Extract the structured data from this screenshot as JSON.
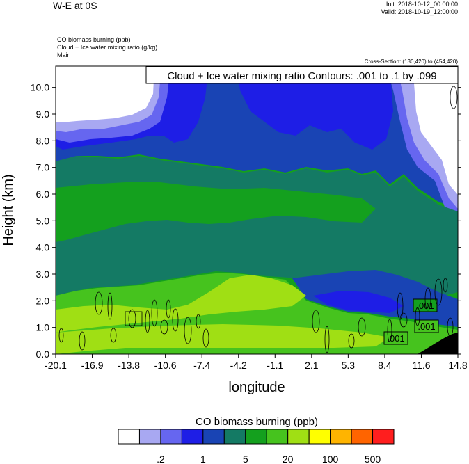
{
  "header": {
    "title": "W-E at 0S",
    "init": "Init: 2018-10-12_00:00:00",
    "valid": "Valid: 2018-10-19_12:00:00",
    "fields": [
      "CO biomass burning   (ppb)",
      "Cloud + Ice water mixing ratio   (g/kg)",
      "Main"
    ],
    "cross_section": "Cross-Section: (130,420) to (454,420)"
  },
  "contour_info": "Cloud + Ice water mixing ratio Contours: .001 to .1 by .099",
  "contour_labels": [
    ".001",
    ".001",
    ".001"
  ],
  "colorbar": {
    "title": "CO biomass burning  (ppb)",
    "colors": [
      "#ffffff",
      "#a8a8f2",
      "#6666f0",
      "#1e1ee6",
      "#1944b4",
      "#147a64",
      "#14a01e",
      "#46c31e",
      "#a0df14",
      "#ffff00",
      "#ffb400",
      "#ff6400",
      "#ff1e1e"
    ],
    "labels": [
      ".2",
      "1",
      "5",
      "20",
      "100",
      "500"
    ]
  },
  "chart_data": {
    "type": "heatmap",
    "title": "W-E at 0S",
    "xlabel": "longitude",
    "ylabel": "Height (km)",
    "x_ticks": [
      "-20.1",
      "-16.9",
      "-13.8",
      "-10.6",
      "-7.4",
      "-4.2",
      "-1.1",
      "2.1",
      "5.3",
      "8.4",
      "11.6",
      "14.8"
    ],
    "y_ticks": [
      "0.0",
      "1.0",
      "2.0",
      "3.0",
      "4.0",
      "5.0",
      "6.0",
      "7.0",
      "8.0",
      "9.0",
      "10.0"
    ],
    "xlim": [
      -20.1,
      14.8
    ],
    "ylim": [
      0,
      10.8
    ],
    "levels_ppb": [
      0.2,
      1,
      5,
      20,
      100,
      500
    ],
    "field": "CO biomass burning (ppb)",
    "overlay": "Cloud + Ice water mixing ratio contours .001 to .1 by .099"
  }
}
